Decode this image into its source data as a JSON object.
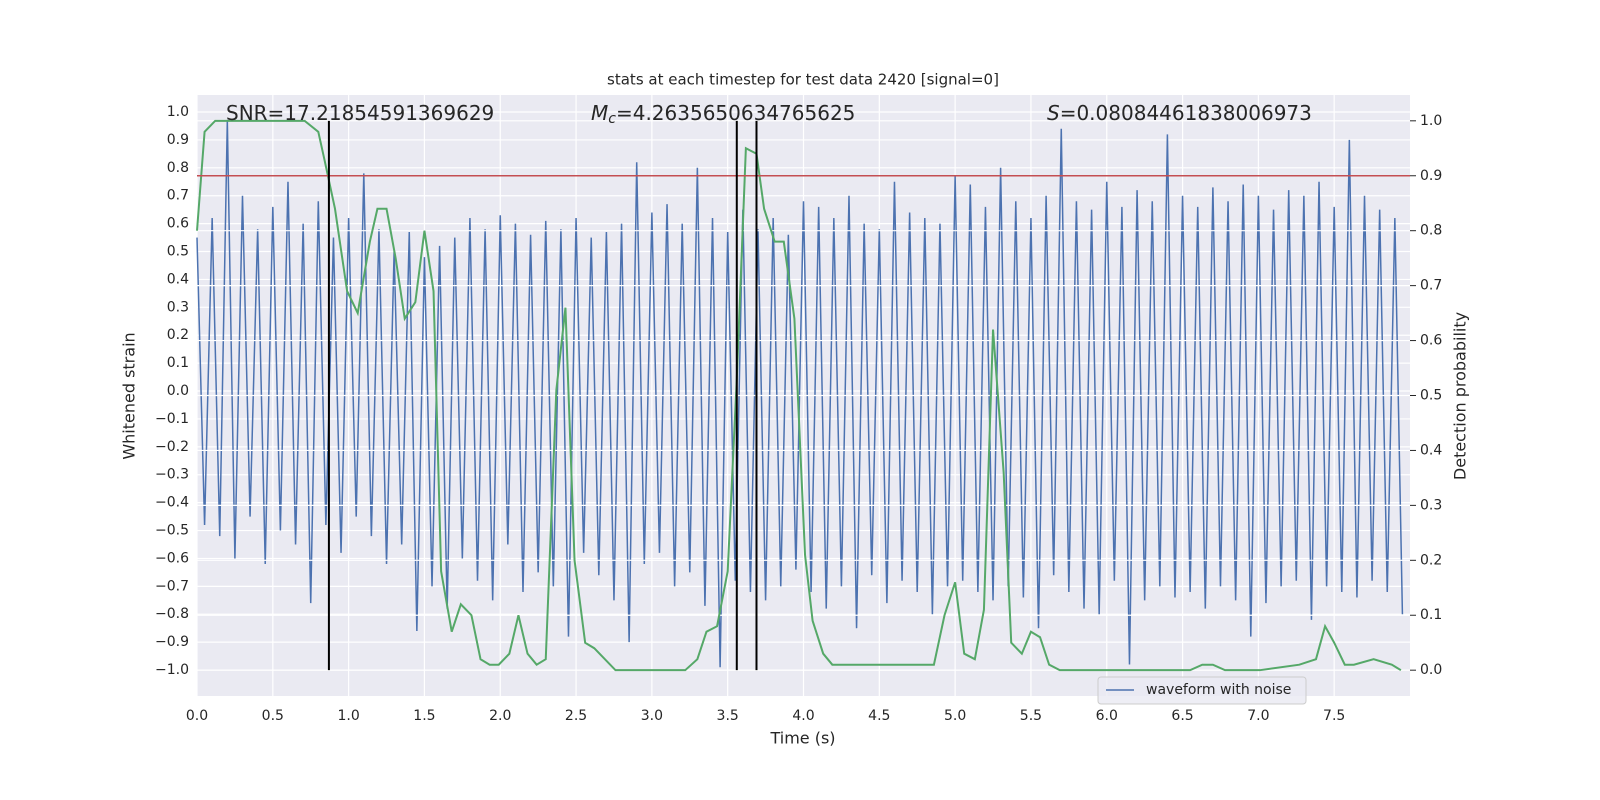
{
  "chart_data": {
    "type": "line",
    "title": "stats at each timestep for test data 2420 [signal=0]",
    "xlabel": "Time (s)",
    "ylabel": "Whitened strain",
    "y2label": "Detection probability",
    "xlim": [
      0,
      8
    ],
    "ylim": [
      -1.093,
      1.061
    ],
    "y2lim": [
      -0.047,
      1.047
    ],
    "xticks": [
      {
        "value": 0,
        "label": "0.0"
      },
      0.5,
      {
        "value": 1,
        "label": "1.0"
      },
      1.5,
      {
        "value": 2,
        "label": "2.0"
      },
      2.5,
      {
        "value": 3,
        "label": "3.0"
      },
      3.5,
      {
        "value": 4,
        "label": "4.0"
      },
      4.5,
      {
        "value": 5,
        "label": "5.0"
      },
      5.5,
      {
        "value": 6,
        "label": "6.0"
      },
      6.5,
      {
        "value": 7,
        "label": "7.0"
      },
      7.5
    ],
    "yticks": [
      {
        "value": -1,
        "label": "−1.0"
      },
      {
        "value": -0.9,
        "label": "−0.9"
      },
      {
        "value": -0.8,
        "label": "−0.8"
      },
      {
        "value": -0.7,
        "label": "−0.7"
      },
      {
        "value": -0.6,
        "label": "−0.6"
      },
      {
        "value": -0.5,
        "label": "−0.5"
      },
      {
        "value": -0.4,
        "label": "−0.4"
      },
      {
        "value": -0.3,
        "label": "−0.3"
      },
      {
        "value": -0.2,
        "label": "−0.2"
      },
      {
        "value": -0.1,
        "label": "−0.1"
      },
      {
        "value": 0,
        "label": "0.0"
      },
      0.1,
      0.2,
      0.3,
      0.4,
      0.5,
      0.6,
      0.7,
      0.8,
      0.9,
      {
        "value": 1,
        "label": "1.0"
      }
    ],
    "y2ticks": [
      {
        "value": 0,
        "label": "0.0"
      },
      0.1,
      0.2,
      0.3,
      0.4,
      0.5,
      0.6,
      0.7,
      0.8,
      0.9,
      {
        "value": 1,
        "label": "1.0"
      }
    ],
    "grid": true,
    "legend": "lower right",
    "series": [
      {
        "name": "waveform with noise",
        "color": "#4c72b0",
        "axis": "y",
        "x": [
          0,
          0.05,
          0.1,
          0.15,
          0.2,
          0.25,
          0.3,
          0.35,
          0.4,
          0.45,
          0.5,
          0.55,
          0.6,
          0.65,
          0.7,
          0.75,
          0.8,
          0.85,
          0.9,
          0.95,
          1,
          1.05,
          1.1,
          1.15,
          1.2,
          1.25,
          1.3,
          1.35,
          1.4,
          1.45,
          1.5,
          1.55,
          1.6,
          1.65,
          1.7,
          1.75,
          1.8,
          1.85,
          1.9,
          1.95,
          2,
          2.05,
          2.1,
          2.15,
          2.2,
          2.25,
          2.3,
          2.35,
          2.4,
          2.45,
          2.5,
          2.55,
          2.6,
          2.65,
          2.7,
          2.75,
          2.8,
          2.85,
          2.9,
          2.95,
          3,
          3.05,
          3.1,
          3.15,
          3.2,
          3.25,
          3.3,
          3.35,
          3.4,
          3.45,
          3.5,
          3.55,
          3.6,
          3.65,
          3.7,
          3.75,
          3.8,
          3.85,
          3.9,
          3.95,
          4,
          4.05,
          4.1,
          4.15,
          4.2,
          4.25,
          4.3,
          4.35,
          4.4,
          4.45,
          4.5,
          4.55,
          4.6,
          4.65,
          4.7,
          4.75,
          4.8,
          4.85,
          4.9,
          4.95,
          5,
          5.05,
          5.1,
          5.15,
          5.2,
          5.25,
          5.3,
          5.35,
          5.4,
          5.45,
          5.5,
          5.55,
          5.6,
          5.65,
          5.7,
          5.75,
          5.8,
          5.85,
          5.9,
          5.95,
          6,
          6.05,
          6.1,
          6.15,
          6.2,
          6.25,
          6.3,
          6.35,
          6.4,
          6.45,
          6.5,
          6.55,
          6.6,
          6.65,
          6.7,
          6.75,
          6.8,
          6.85,
          6.9,
          6.95,
          7,
          7.05,
          7.1,
          7.15,
          7.2,
          7.25,
          7.3,
          7.35,
          7.4,
          7.45,
          7.5,
          7.55,
          7.6,
          7.65,
          7.7,
          7.75,
          7.8,
          7.85,
          7.9,
          7.95
        ],
        "values": [
          0.55,
          -0.48,
          0.62,
          -0.52,
          0.97,
          -0.6,
          0.7,
          -0.45,
          0.58,
          -0.62,
          0.66,
          -0.5,
          0.75,
          -0.55,
          0.6,
          -0.76,
          0.68,
          -0.48,
          0.55,
          -0.58,
          0.62,
          -0.45,
          0.78,
          -0.52,
          0.58,
          -0.62,
          0.5,
          -0.55,
          0.57,
          -0.86,
          0.48,
          -0.7,
          0.52,
          -0.78,
          0.55,
          -0.6,
          0.62,
          -0.68,
          0.58,
          -0.75,
          0.63,
          -0.55,
          0.6,
          -0.72,
          0.56,
          -0.65,
          0.61,
          -0.7,
          0.58,
          -0.88,
          0.62,
          -0.58,
          0.55,
          -0.66,
          0.57,
          -0.75,
          0.6,
          -0.9,
          0.82,
          -0.62,
          0.64,
          -0.58,
          0.67,
          -0.7,
          0.6,
          -0.65,
          0.8,
          -0.77,
          0.62,
          -0.99,
          0.57,
          -0.68,
          0.65,
          -0.72,
          0.58,
          -0.75,
          0.62,
          -0.7,
          0.56,
          -0.64,
          0.68,
          -0.72,
          0.66,
          -0.78,
          0.62,
          -0.7,
          0.7,
          -0.85,
          0.6,
          -0.66,
          0.58,
          -0.76,
          0.75,
          -0.68,
          0.64,
          -0.72,
          0.62,
          -0.8,
          0.6,
          -0.7,
          0.77,
          -0.68,
          0.74,
          -0.72,
          0.66,
          -0.75,
          0.8,
          -0.7,
          0.68,
          -0.74,
          0.62,
          -0.85,
          0.7,
          -0.66,
          0.94,
          -0.72,
          0.68,
          -0.78,
          0.65,
          -0.8,
          0.75,
          -0.68,
          0.66,
          -0.98,
          0.72,
          -0.75,
          0.68,
          -0.7,
          0.92,
          -0.74,
          0.7,
          -0.72,
          0.66,
          -0.78,
          0.73,
          -0.7,
          0.68,
          -0.75,
          0.74,
          -0.88,
          0.7,
          -0.76,
          0.65,
          -0.7,
          0.72,
          -0.68,
          0.7,
          -0.82,
          0.75,
          -0.7,
          0.66,
          -0.72,
          0.9,
          -0.74,
          0.7,
          -0.68,
          0.65,
          -0.72,
          0.62,
          -0.8
        ]
      },
      {
        "color": "#55a868",
        "axis": "y2",
        "x": [
          0,
          0.05,
          0.12,
          0.71,
          0.8,
          0.84,
          0.91,
          0.99,
          1.06,
          1.14,
          1.19,
          1.25,
          1.31,
          1.37,
          1.44,
          1.5,
          1.56,
          1.61,
          1.68,
          1.74,
          1.81,
          1.87,
          1.93,
          1.99,
          2.06,
          2.12,
          2.18,
          2.24,
          2.3,
          2.37,
          2.43,
          2.49,
          2.56,
          2.62,
          2.76,
          2.99,
          3.22,
          3.3,
          3.36,
          3.43,
          3.5,
          3.56,
          3.62,
          3.69,
          3.74,
          3.81,
          3.87,
          3.94,
          4.01,
          4.06,
          4.13,
          4.19,
          4.25,
          4.5,
          4.7,
          4.8,
          4.86,
          4.93,
          5,
          5.06,
          5.13,
          5.19,
          5.25,
          5.32,
          5.37,
          5.44,
          5.5,
          5.56,
          5.62,
          5.69,
          5.95,
          6.28,
          6.55,
          6.63,
          6.7,
          6.78,
          7.01,
          7.27,
          7.38,
          7.44,
          7.5,
          7.57,
          7.63,
          7.76,
          7.88,
          7.94
        ],
        "values": [
          0.8,
          0.98,
          1,
          1,
          0.98,
          0.93,
          0.84,
          0.69,
          0.65,
          0.78,
          0.84,
          0.84,
          0.75,
          0.64,
          0.67,
          0.8,
          0.69,
          0.18,
          0.07,
          0.12,
          0.1,
          0.02,
          0.01,
          0.01,
          0.03,
          0.1,
          0.03,
          0.01,
          0.02,
          0.51,
          0.66,
          0.2,
          0.05,
          0.04,
          0,
          0,
          0,
          0.02,
          0.07,
          0.08,
          0.18,
          0.53,
          0.95,
          0.94,
          0.84,
          0.78,
          0.78,
          0.64,
          0.21,
          0.09,
          0.03,
          0.01,
          0.01,
          0.01,
          0.01,
          0.01,
          0.01,
          0.1,
          0.16,
          0.03,
          0.02,
          0.11,
          0.62,
          0.36,
          0.05,
          0.03,
          0.07,
          0.06,
          0.01,
          0,
          0,
          0,
          0,
          0.01,
          0.01,
          0,
          0,
          0.01,
          0.02,
          0.08,
          0.05,
          0.01,
          0.01,
          0.02,
          0.01,
          0
        ]
      }
    ],
    "threshold": {
      "value": 0.9,
      "color": "#c44e52",
      "axis": "y2"
    },
    "vlines": {
      "x": [
        0.87,
        3.56,
        3.69
      ],
      "ymin": 0,
      "ymax": 1,
      "color": "#000000",
      "axis": "y2"
    },
    "annotations": [
      {
        "text": "SNR=17.21854591369629"
      },
      {
        "symbol": "M",
        "subscript": "c",
        "text": "=4.2635650634765625"
      },
      {
        "symbol": "S",
        "text": "=0.08084461838006973"
      }
    ]
  }
}
